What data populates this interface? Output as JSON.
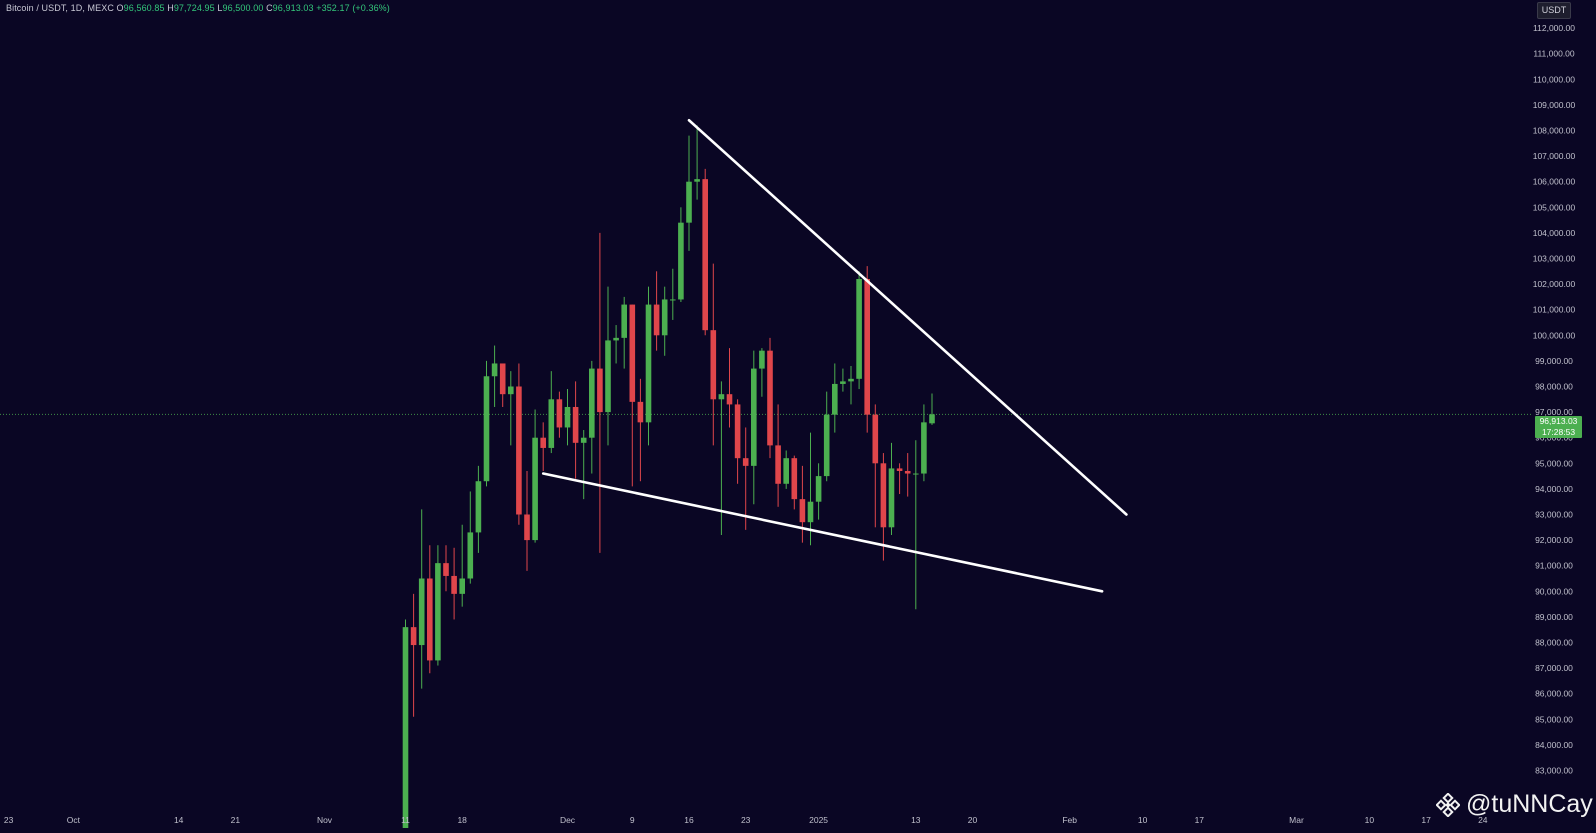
{
  "header": {
    "symbol": "Bitcoin / USDT, 1D, MEXC",
    "open_label": "O",
    "open": "96,560.85",
    "high_label": "H",
    "high": "97,724.95",
    "low_label": "L",
    "low": "96,500.00",
    "close_label": "C",
    "close": "96,913.03",
    "change": "+352.17 (+0.36%)"
  },
  "currency_button": "USDT",
  "last_price": {
    "price": "96,913.03",
    "countdown": "17:28:53"
  },
  "watermark": "@tuNNCay",
  "colors": {
    "background": "#0a0624",
    "up": "#4caf50",
    "down": "#e0464b",
    "trendline": "#ffffff",
    "price_line": "#4caf50"
  },
  "chart_data": {
    "type": "candlestick",
    "ylim": [
      82000,
      112500
    ],
    "y_ticks": [
      "112,000.00",
      "111,000.00",
      "110,000.00",
      "109,000.00",
      "108,000.00",
      "107,000.00",
      "106,000.00",
      "105,000.00",
      "104,000.00",
      "103,000.00",
      "102,000.00",
      "101,000.00",
      "100,000.00",
      "99,000.00",
      "98,000.00",
      "97,000.00",
      "96,000.00",
      "95,000.00",
      "94,000.00",
      "93,000.00",
      "92,000.00",
      "91,000.00",
      "90,000.00",
      "89,000.00",
      "88,000.00",
      "87,000.00",
      "86,000.00",
      "85,000.00",
      "84,000.00",
      "83,000.00"
    ],
    "x_ticks": [
      {
        "label": "23",
        "day": 0
      },
      {
        "label": "Oct",
        "day": 8
      },
      {
        "label": "14",
        "day": 21
      },
      {
        "label": "21",
        "day": 28
      },
      {
        "label": "Nov",
        "day": 39
      },
      {
        "label": "11",
        "day": 49
      },
      {
        "label": "18",
        "day": 56
      },
      {
        "label": "Dec",
        "day": 69
      },
      {
        "label": "9",
        "day": 77
      },
      {
        "label": "16",
        "day": 84
      },
      {
        "label": "23",
        "day": 91
      },
      {
        "label": "2025",
        "day": 100
      },
      {
        "label": "13",
        "day": 112
      },
      {
        "label": "20",
        "day": 119
      },
      {
        "label": "Feb",
        "day": 131
      },
      {
        "label": "10",
        "day": 140
      },
      {
        "label": "17",
        "day": 147
      },
      {
        "label": "Mar",
        "day": 159
      },
      {
        "label": "10",
        "day": 168
      },
      {
        "label": "17",
        "day": 175
      },
      {
        "label": "24",
        "day": 182
      }
    ],
    "candles": [
      {
        "d": "2024-11-11",
        "o": 80400,
        "h": 88900,
        "l": 80200,
        "c": 88600
      },
      {
        "d": "2024-11-12",
        "o": 88600,
        "h": 89900,
        "l": 85100,
        "c": 87900
      },
      {
        "d": "2024-11-13",
        "o": 87900,
        "h": 93200,
        "l": 86200,
        "c": 90500
      },
      {
        "d": "2024-11-14",
        "o": 90500,
        "h": 91800,
        "l": 86800,
        "c": 87300
      },
      {
        "d": "2024-11-15",
        "o": 87300,
        "h": 91800,
        "l": 87100,
        "c": 91100
      },
      {
        "d": "2024-11-16",
        "o": 91100,
        "h": 91800,
        "l": 90000,
        "c": 90600
      },
      {
        "d": "2024-11-17",
        "o": 90600,
        "h": 91700,
        "l": 88900,
        "c": 89900
      },
      {
        "d": "2024-11-18",
        "o": 89900,
        "h": 92600,
        "l": 89400,
        "c": 90500
      },
      {
        "d": "2024-11-19",
        "o": 90500,
        "h": 93900,
        "l": 90300,
        "c": 92300
      },
      {
        "d": "2024-11-20",
        "o": 92300,
        "h": 94900,
        "l": 91500,
        "c": 94300
      },
      {
        "d": "2024-11-21",
        "o": 94300,
        "h": 99000,
        "l": 94100,
        "c": 98400
      },
      {
        "d": "2024-11-22",
        "o": 98400,
        "h": 99600,
        "l": 97200,
        "c": 98900
      },
      {
        "d": "2024-11-23",
        "o": 98900,
        "h": 98800,
        "l": 97200,
        "c": 97700
      },
      {
        "d": "2024-11-24",
        "o": 97700,
        "h": 98600,
        "l": 95700,
        "c": 98000
      },
      {
        "d": "2024-11-25",
        "o": 98000,
        "h": 98900,
        "l": 92600,
        "c": 93000
      },
      {
        "d": "2024-11-26",
        "o": 93000,
        "h": 94700,
        "l": 90800,
        "c": 92000
      },
      {
        "d": "2024-11-27",
        "o": 92000,
        "h": 97100,
        "l": 91900,
        "c": 96000
      },
      {
        "d": "2024-11-28",
        "o": 96000,
        "h": 96600,
        "l": 94700,
        "c": 95600
      },
      {
        "d": "2024-11-29",
        "o": 95600,
        "h": 98600,
        "l": 95400,
        "c": 97500
      },
      {
        "d": "2024-11-30",
        "o": 97500,
        "h": 97800,
        "l": 96000,
        "c": 96400
      },
      {
        "d": "2024-12-01",
        "o": 96400,
        "h": 97900,
        "l": 95700,
        "c": 97200
      },
      {
        "d": "2024-12-02",
        "o": 97200,
        "h": 98200,
        "l": 94400,
        "c": 95800
      },
      {
        "d": "2024-12-03",
        "o": 95800,
        "h": 96300,
        "l": 93600,
        "c": 96000
      },
      {
        "d": "2024-12-04",
        "o": 96000,
        "h": 99000,
        "l": 94600,
        "c": 98700
      },
      {
        "d": "2024-12-05",
        "o": 98700,
        "h": 104000,
        "l": 91500,
        "c": 97000
      },
      {
        "d": "2024-12-06",
        "o": 97000,
        "h": 101900,
        "l": 95700,
        "c": 99800
      },
      {
        "d": "2024-12-07",
        "o": 99800,
        "h": 100400,
        "l": 98900,
        "c": 99900
      },
      {
        "d": "2024-12-08",
        "o": 99900,
        "h": 101500,
        "l": 98700,
        "c": 101200
      },
      {
        "d": "2024-12-09",
        "o": 101200,
        "h": 101200,
        "l": 94100,
        "c": 97400
      },
      {
        "d": "2024-12-10",
        "o": 97400,
        "h": 98300,
        "l": 94300,
        "c": 96600
      },
      {
        "d": "2024-12-11",
        "o": 96600,
        "h": 101900,
        "l": 95700,
        "c": 101200
      },
      {
        "d": "2024-12-12",
        "o": 101200,
        "h": 102500,
        "l": 99400,
        "c": 100000
      },
      {
        "d": "2024-12-13",
        "o": 100000,
        "h": 101900,
        "l": 99200,
        "c": 101400
      },
      {
        "d": "2024-12-14",
        "o": 101400,
        "h": 102600,
        "l": 100600,
        "c": 101400
      },
      {
        "d": "2024-12-15",
        "o": 101400,
        "h": 105000,
        "l": 101300,
        "c": 104400
      },
      {
        "d": "2024-12-16",
        "o": 104400,
        "h": 107800,
        "l": 103300,
        "c": 106000
      },
      {
        "d": "2024-12-17",
        "o": 106000,
        "h": 108200,
        "l": 105300,
        "c": 106100
      },
      {
        "d": "2024-12-18",
        "o": 106100,
        "h": 106500,
        "l": 100000,
        "c": 100200
      },
      {
        "d": "2024-12-19",
        "o": 100200,
        "h": 102800,
        "l": 95700,
        "c": 97500
      },
      {
        "d": "2024-12-20",
        "o": 97500,
        "h": 98200,
        "l": 92200,
        "c": 97700
      },
      {
        "d": "2024-12-21",
        "o": 97700,
        "h": 99500,
        "l": 96400,
        "c": 97300
      },
      {
        "d": "2024-12-22",
        "o": 97300,
        "h": 97500,
        "l": 94200,
        "c": 95200
      },
      {
        "d": "2024-12-23",
        "o": 95200,
        "h": 96400,
        "l": 92400,
        "c": 94900
      },
      {
        "d": "2024-12-24",
        "o": 94900,
        "h": 99400,
        "l": 93400,
        "c": 98700
      },
      {
        "d": "2024-12-25",
        "o": 98700,
        "h": 99500,
        "l": 97600,
        "c": 99400
      },
      {
        "d": "2024-12-26",
        "o": 99400,
        "h": 99900,
        "l": 95200,
        "c": 95700
      },
      {
        "d": "2024-12-27",
        "o": 95700,
        "h": 97300,
        "l": 93300,
        "c": 94200
      },
      {
        "d": "2024-12-28",
        "o": 94200,
        "h": 95500,
        "l": 94000,
        "c": 95200
      },
      {
        "d": "2024-12-29",
        "o": 95200,
        "h": 95300,
        "l": 93200,
        "c": 93600
      },
      {
        "d": "2024-12-30",
        "o": 93600,
        "h": 94900,
        "l": 91900,
        "c": 92700
      },
      {
        "d": "2024-12-31",
        "o": 92700,
        "h": 96200,
        "l": 91800,
        "c": 93500
      },
      {
        "d": "2025-01-01",
        "o": 93500,
        "h": 95000,
        "l": 92800,
        "c": 94500
      },
      {
        "d": "2025-01-02",
        "o": 94500,
        "h": 97800,
        "l": 94300,
        "c": 96900
      },
      {
        "d": "2025-01-03",
        "o": 96900,
        "h": 98900,
        "l": 96200,
        "c": 98100
      },
      {
        "d": "2025-01-04",
        "o": 98100,
        "h": 98700,
        "l": 97800,
        "c": 98200
      },
      {
        "d": "2025-01-05",
        "o": 98200,
        "h": 98800,
        "l": 97300,
        "c": 98300
      },
      {
        "d": "2025-01-06",
        "o": 98300,
        "h": 102500,
        "l": 97900,
        "c": 102200
      },
      {
        "d": "2025-01-07",
        "o": 102200,
        "h": 102700,
        "l": 96200,
        "c": 96900
      },
      {
        "d": "2025-01-08",
        "o": 96900,
        "h": 97300,
        "l": 92500,
        "c": 95000
      },
      {
        "d": "2025-01-09",
        "o": 95000,
        "h": 95400,
        "l": 91200,
        "c": 92500
      },
      {
        "d": "2025-01-10",
        "o": 92500,
        "h": 95800,
        "l": 92200,
        "c": 94800
      },
      {
        "d": "2025-01-11",
        "o": 94800,
        "h": 95000,
        "l": 93800,
        "c": 94700
      },
      {
        "d": "2025-01-12",
        "o": 94700,
        "h": 95400,
        "l": 93700,
        "c": 94600
      },
      {
        "d": "2025-01-13",
        "o": 94600,
        "h": 95900,
        "l": 89300,
        "c": 94600
      },
      {
        "d": "2025-01-14",
        "o": 94600,
        "h": 97300,
        "l": 94300,
        "c": 96600
      },
      {
        "d": "2025-01-15",
        "o": 96561,
        "h": 97725,
        "l": 96500,
        "c": 96913
      }
    ],
    "trendlines": [
      {
        "from": {
          "d": "2024-12-16",
          "v": 108400
        },
        "to": {
          "d": "2025-02-08",
          "v": 93000
        }
      },
      {
        "from": {
          "d": "2024-11-28",
          "v": 94600
        },
        "to": {
          "d": "2025-02-05",
          "v": 90000
        }
      }
    ],
    "last_price_line": 96913.03
  }
}
